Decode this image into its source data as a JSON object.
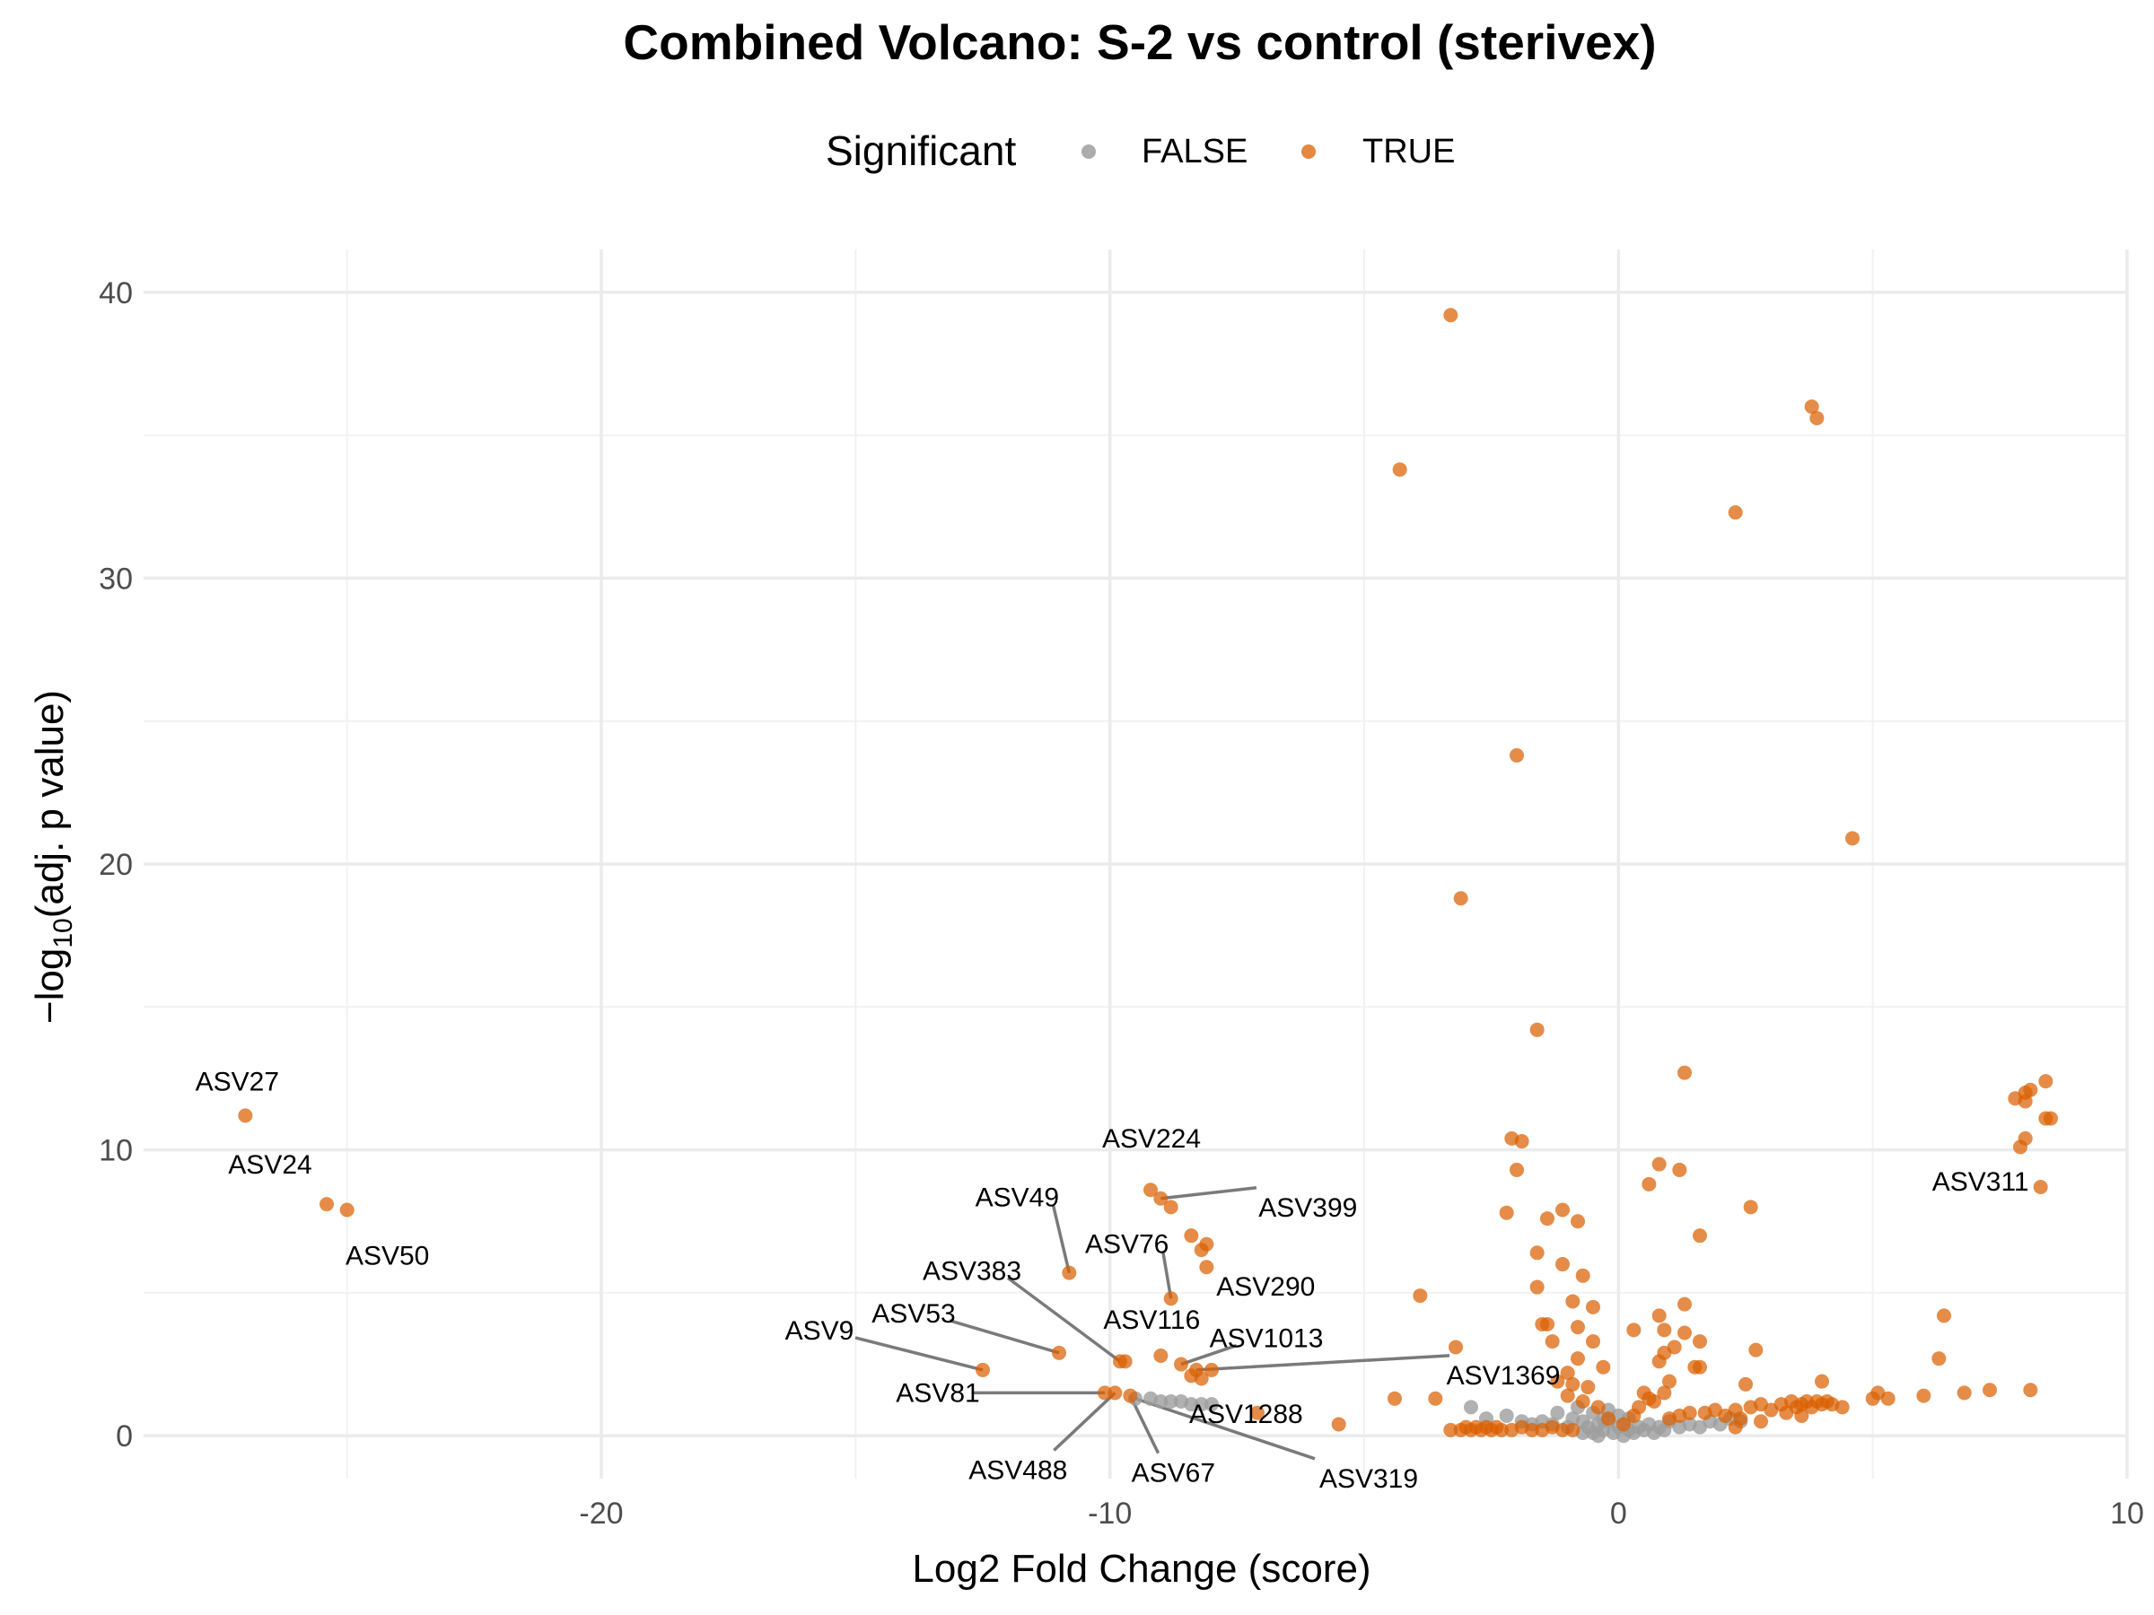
{
  "chart_data": {
    "type": "scatter",
    "title": "Combined Volcano: S-2 vs control (sterivex)",
    "xlabel": "Log2 Fold Change (score)",
    "ylabel_prefix": "−log",
    "ylabel_sub": "10",
    "ylabel_suffix": "(adj. p value)",
    "xlim": [
      -29,
      10
    ],
    "ylim": [
      -1.5,
      41.5
    ],
    "x_ticks": [
      -20,
      -10,
      0,
      10
    ],
    "y_ticks": [
      0,
      10,
      20,
      30,
      40
    ],
    "x_tick_labels": [
      "-20",
      "-10",
      "0",
      "10"
    ],
    "y_tick_labels": [
      "0",
      "10",
      "20",
      "30",
      "40"
    ],
    "grid": true,
    "legend": {
      "title": "Significant",
      "position": "top",
      "entries": [
        {
          "label": "FALSE",
          "color": "#9e9e9e"
        },
        {
          "label": "TRUE",
          "color": "#d95f02"
        }
      ]
    },
    "colors": {
      "FALSE": "#9e9e9e",
      "TRUE": "#d95f02"
    },
    "series": [
      {
        "name": "TRUE",
        "points": [
          [
            -27.0,
            11.2
          ],
          [
            -25.4,
            8.1
          ],
          [
            -25.0,
            7.9
          ],
          [
            -12.5,
            2.3
          ],
          [
            -11.0,
            2.9
          ],
          [
            -10.8,
            5.7
          ],
          [
            -10.1,
            1.5
          ],
          [
            -9.9,
            1.5
          ],
          [
            -9.8,
            2.6
          ],
          [
            -9.7,
            2.6
          ],
          [
            -9.6,
            1.4
          ],
          [
            -9.2,
            8.6
          ],
          [
            -9.0,
            8.3
          ],
          [
            -9.0,
            2.8
          ],
          [
            -8.8,
            4.8
          ],
          [
            -8.8,
            8.0
          ],
          [
            -8.6,
            2.5
          ],
          [
            -8.4,
            7.0
          ],
          [
            -8.2,
            6.5
          ],
          [
            -8.1,
            6.7
          ],
          [
            -8.1,
            5.9
          ],
          [
            -8.4,
            2.1
          ],
          [
            -8.3,
            2.3
          ],
          [
            -8.2,
            2.0
          ],
          [
            -8.0,
            2.3
          ],
          [
            -7.1,
            0.8
          ],
          [
            -5.5,
            0.4
          ],
          [
            -4.3,
            33.8
          ],
          [
            -3.9,
            4.9
          ],
          [
            -4.4,
            1.3
          ],
          [
            -3.6,
            1.3
          ],
          [
            -3.3,
            39.2
          ],
          [
            -3.2,
            3.1
          ],
          [
            -3.1,
            18.8
          ],
          [
            -3.3,
            0.2
          ],
          [
            -3.1,
            0.2
          ],
          [
            -3.0,
            0.3
          ],
          [
            -2.9,
            0.2
          ],
          [
            -2.8,
            0.3
          ],
          [
            -2.7,
            0.2
          ],
          [
            -2.6,
            0.3
          ],
          [
            -2.5,
            0.2
          ],
          [
            -2.4,
            0.3
          ],
          [
            -2.3,
            0.2
          ],
          [
            -2.1,
            0.2
          ],
          [
            -1.9,
            0.3
          ],
          [
            -1.7,
            0.2
          ],
          [
            -1.5,
            0.2
          ],
          [
            -1.3,
            0.3
          ],
          [
            -1.1,
            0.2
          ],
          [
            -0.9,
            0.2
          ],
          [
            -2.0,
            23.8
          ],
          [
            -1.6,
            14.2
          ],
          [
            -2.1,
            10.4
          ],
          [
            -1.9,
            10.3
          ],
          [
            -2.0,
            9.3
          ],
          [
            -2.2,
            7.8
          ],
          [
            -1.4,
            7.6
          ],
          [
            -1.1,
            7.9
          ],
          [
            -0.8,
            7.5
          ],
          [
            -1.6,
            6.4
          ],
          [
            -1.1,
            6.0
          ],
          [
            -0.7,
            5.6
          ],
          [
            -1.6,
            5.2
          ],
          [
            -0.9,
            4.7
          ],
          [
            -0.5,
            4.5
          ],
          [
            -1.4,
            3.9
          ],
          [
            -1.5,
            3.9
          ],
          [
            -0.8,
            3.8
          ],
          [
            -1.3,
            3.3
          ],
          [
            -0.5,
            3.3
          ],
          [
            -0.8,
            2.7
          ],
          [
            -0.3,
            2.4
          ],
          [
            -1.0,
            2.2
          ],
          [
            -1.2,
            1.9
          ],
          [
            -0.9,
            1.8
          ],
          [
            -0.6,
            1.7
          ],
          [
            -1.0,
            1.4
          ],
          [
            -0.7,
            1.2
          ],
          [
            -0.4,
            1.0
          ],
          [
            -0.2,
            0.6
          ],
          [
            0.1,
            0.4
          ],
          [
            0.3,
            0.7
          ],
          [
            0.8,
            9.5
          ],
          [
            0.6,
            8.8
          ],
          [
            1.2,
            9.3
          ],
          [
            1.3,
            12.7
          ],
          [
            1.6,
            7.0
          ],
          [
            2.6,
            8.0
          ],
          [
            0.3,
            3.7
          ],
          [
            0.8,
            4.2
          ],
          [
            0.9,
            3.7
          ],
          [
            1.3,
            4.6
          ],
          [
            1.3,
            3.6
          ],
          [
            1.6,
            3.3
          ],
          [
            1.1,
            3.1
          ],
          [
            0.9,
            2.9
          ],
          [
            1.5,
            2.4
          ],
          [
            1.6,
            2.4
          ],
          [
            1.0,
            1.9
          ],
          [
            0.8,
            2.6
          ],
          [
            2.5,
            1.8
          ],
          [
            2.7,
            3.0
          ],
          [
            0.5,
            1.5
          ],
          [
            0.6,
            1.3
          ],
          [
            0.9,
            1.5
          ],
          [
            0.7,
            1.2
          ],
          [
            0.4,
            1.0
          ],
          [
            2.3,
            32.3
          ],
          [
            3.8,
            36.0
          ],
          [
            3.9,
            35.6
          ],
          [
            4.6,
            20.9
          ],
          [
            1.0,
            0.6
          ],
          [
            1.2,
            0.7
          ],
          [
            1.4,
            0.8
          ],
          [
            1.7,
            0.8
          ],
          [
            1.9,
            0.9
          ],
          [
            2.1,
            0.7
          ],
          [
            2.3,
            0.9
          ],
          [
            2.4,
            0.6
          ],
          [
            2.6,
            1.0
          ],
          [
            2.8,
            1.1
          ],
          [
            3.0,
            0.9
          ],
          [
            3.2,
            1.1
          ],
          [
            3.4,
            1.2
          ],
          [
            3.5,
            1.0
          ],
          [
            3.6,
            1.1
          ],
          [
            3.7,
            1.2
          ],
          [
            3.8,
            1.0
          ],
          [
            3.9,
            1.2
          ],
          [
            4.0,
            1.1
          ],
          [
            4.1,
            1.2
          ],
          [
            4.2,
            1.1
          ],
          [
            4.4,
            1.0
          ],
          [
            3.3,
            0.8
          ],
          [
            3.6,
            0.7
          ],
          [
            2.8,
            0.5
          ],
          [
            2.3,
            0.3
          ],
          [
            4.0,
            1.9
          ],
          [
            5.0,
            1.3
          ],
          [
            5.1,
            1.5
          ],
          [
            5.3,
            1.3
          ],
          [
            6.0,
            1.4
          ],
          [
            6.3,
            2.7
          ],
          [
            6.4,
            4.2
          ],
          [
            6.8,
            1.5
          ],
          [
            7.3,
            1.6
          ],
          [
            8.1,
            1.6
          ],
          [
            7.8,
            11.8
          ],
          [
            8.0,
            12.0
          ],
          [
            8.1,
            12.1
          ],
          [
            8.0,
            11.7
          ],
          [
            8.4,
            12.4
          ],
          [
            8.4,
            11.1
          ],
          [
            8.5,
            11.1
          ],
          [
            8.0,
            10.4
          ],
          [
            7.9,
            10.1
          ],
          [
            8.3,
            8.7
          ]
        ]
      },
      {
        "name": "FALSE",
        "points": [
          [
            -9.5,
            1.3
          ],
          [
            -9.2,
            1.3
          ],
          [
            -9.0,
            1.2
          ],
          [
            -8.8,
            1.2
          ],
          [
            -8.6,
            1.2
          ],
          [
            -8.4,
            1.1
          ],
          [
            -8.2,
            1.1
          ],
          [
            -8.0,
            1.1
          ],
          [
            -2.9,
            1.0
          ],
          [
            -2.6,
            0.6
          ],
          [
            -2.2,
            0.7
          ],
          [
            -1.9,
            0.5
          ],
          [
            -1.7,
            0.4
          ],
          [
            -1.5,
            0.5
          ],
          [
            -1.3,
            0.4
          ],
          [
            -1.2,
            0.8
          ],
          [
            -1.0,
            0.3
          ],
          [
            -0.9,
            0.6
          ],
          [
            -0.8,
            1.0
          ],
          [
            -0.7,
            0.5
          ],
          [
            -0.6,
            0.3
          ],
          [
            -0.5,
            0.8
          ],
          [
            -0.5,
            0.1
          ],
          [
            -0.4,
            0.4
          ],
          [
            -0.3,
            0.2
          ],
          [
            -0.2,
            0.5
          ],
          [
            -0.1,
            0.1
          ],
          [
            0.0,
            0.3
          ],
          [
            0.1,
            0.0
          ],
          [
            0.2,
            0.2
          ],
          [
            0.3,
            0.1
          ],
          [
            0.4,
            0.3
          ],
          [
            0.5,
            0.2
          ],
          [
            0.6,
            0.4
          ],
          [
            0.7,
            0.1
          ],
          [
            0.8,
            0.3
          ],
          [
            0.9,
            0.2
          ],
          [
            1.0,
            0.5
          ],
          [
            1.2,
            0.3
          ],
          [
            1.4,
            0.4
          ],
          [
            1.6,
            0.3
          ],
          [
            1.8,
            0.5
          ],
          [
            2.0,
            0.4
          ],
          [
            2.2,
            0.6
          ],
          [
            2.4,
            0.5
          ],
          [
            -0.7,
            0.1
          ],
          [
            -0.4,
            0.0
          ],
          [
            0.2,
            0.6
          ],
          [
            -0.2,
            0.9
          ],
          [
            0.0,
            0.7
          ],
          [
            -0.3,
            0.6
          ]
        ]
      }
    ],
    "annotations": [
      {
        "text": "ASV27",
        "x": -27.0,
        "y": 11.2
      },
      {
        "text": "ASV24",
        "x": -25.4,
        "y": 8.1
      },
      {
        "text": "ASV50",
        "x": -25.0,
        "y": 7.9
      },
      {
        "text": "ASV224",
        "x": -9.2,
        "y": 8.6
      },
      {
        "text": "ASV399",
        "x": -9.0,
        "y": 8.3
      },
      {
        "text": "ASV49",
        "x": -10.8,
        "y": 5.7
      },
      {
        "text": "ASV76",
        "x": -8.8,
        "y": 4.8
      },
      {
        "text": "ASV290",
        "x": -8.1,
        "y": 5.9
      },
      {
        "text": "ASV383",
        "x": -9.8,
        "y": 2.6
      },
      {
        "text": "ASV116",
        "x": -9.0,
        "y": 2.8
      },
      {
        "text": "ASV1013",
        "x": -8.6,
        "y": 2.5
      },
      {
        "text": "ASV9",
        "x": -12.5,
        "y": 2.3
      },
      {
        "text": "ASV53",
        "x": -11.0,
        "y": 2.9
      },
      {
        "text": "ASV81",
        "x": -10.1,
        "y": 1.5
      },
      {
        "text": "ASV1288",
        "x": -8.4,
        "y": 1.2
      },
      {
        "text": "ASV1369",
        "x": -8.3,
        "y": 2.3
      },
      {
        "text": "ASV488",
        "x": -9.9,
        "y": 1.5
      },
      {
        "text": "ASV67",
        "x": -9.6,
        "y": 1.4
      },
      {
        "text": "ASV319",
        "x": -9.5,
        "y": 1.3
      },
      {
        "text": "ASV311",
        "x": 8.0,
        "y": 10.4
      }
    ]
  }
}
